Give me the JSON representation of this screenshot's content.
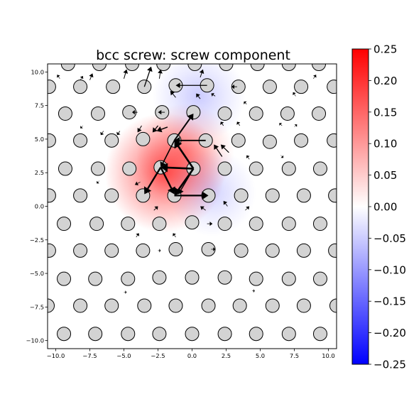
{
  "chart_data": {
    "type": "scatter",
    "title": "bcc screw: screw component",
    "xlabel": "",
    "ylabel": "",
    "xlim": [
      -10.6,
      10.6
    ],
    "ylim": [
      -10.6,
      10.6
    ],
    "xticks": [
      -10.0,
      -7.5,
      -5.0,
      -2.5,
      0.0,
      2.5,
      5.0,
      7.5,
      10.0
    ],
    "yticks": [
      -10.0,
      -7.5,
      -5.0,
      -2.5,
      0.0,
      2.5,
      5.0,
      7.5,
      10.0
    ],
    "xtick_labels": [
      "−10.0",
      "−7.5",
      "−5.0",
      "−2.5",
      "0.0",
      "2.5",
      "5.0",
      "7.5",
      "10.0"
    ],
    "ytick_labels": [
      "−10.0",
      "−7.5",
      "−5.0",
      "−2.5",
      "0.0",
      "2.5",
      "5.0",
      "7.5",
      "10.0"
    ],
    "atom_color": "#d3d3d3",
    "arrow_color": "#000000",
    "colormap": "bwr",
    "colorbar": {
      "range": [
        -0.25,
        0.25
      ],
      "ticks": [
        0.25,
        0.2,
        0.15,
        0.1,
        0.05,
        0.0,
        -0.05,
        -0.1,
        -0.15,
        -0.2,
        -0.25
      ],
      "tick_labels": [
        "0.25",
        "0.20",
        "0.15",
        "0.10",
        "0.05",
        "0.00",
        "−0.05",
        "−0.10",
        "−0.15",
        "−0.20",
        "−0.25"
      ],
      "colors": [
        "#ff0000",
        "#ffffff",
        "#0000ff"
      ]
    },
    "field": [
      {
        "x": -2.0,
        "y": 2.5,
        "value": 0.2,
        "sigma": 2.2
      },
      {
        "x": -0.5,
        "y": 4.0,
        "value": 0.1,
        "sigma": 1.8
      },
      {
        "x": 1.5,
        "y": 1.0,
        "value": -0.05,
        "sigma": 1.6
      },
      {
        "x": 0.5,
        "y": 8.2,
        "value": -0.06,
        "sigma": 1.7
      }
    ],
    "atoms": [
      {
        "x": -9.1,
        "y": 10.6
      },
      {
        "x": -6.8,
        "y": 10.6
      },
      {
        "x": -4.4,
        "y": 10.6
      },
      {
        "x": -2.1,
        "y": 10.6
      },
      {
        "x": 0.2,
        "y": 10.6
      },
      {
        "x": 2.5,
        "y": 10.6
      },
      {
        "x": 4.8,
        "y": 10.6
      },
      {
        "x": 7.1,
        "y": 10.6
      },
      {
        "x": 9.3,
        "y": 10.6
      },
      {
        "x": -10.5,
        "y": 8.9
      },
      {
        "x": -8.2,
        "y": 8.9
      },
      {
        "x": -5.8,
        "y": 8.9
      },
      {
        "x": -3.5,
        "y": 8.9
      },
      {
        "x": -1.2,
        "y": 9.0
      },
      {
        "x": 1.1,
        "y": 9.0
      },
      {
        "x": 3.4,
        "y": 8.9
      },
      {
        "x": 5.7,
        "y": 8.9
      },
      {
        "x": 8.0,
        "y": 8.9
      },
      {
        "x": 10.4,
        "y": 8.9
      },
      {
        "x": -9.3,
        "y": 6.9
      },
      {
        "x": -6.9,
        "y": 6.9
      },
      {
        "x": -4.6,
        "y": 7.0
      },
      {
        "x": -2.2,
        "y": 7.0
      },
      {
        "x": 0.1,
        "y": 7.0
      },
      {
        "x": 2.4,
        "y": 6.9
      },
      {
        "x": 4.7,
        "y": 6.9
      },
      {
        "x": 7.0,
        "y": 6.9
      },
      {
        "x": 9.3,
        "y": 6.9
      },
      {
        "x": -10.5,
        "y": 4.9
      },
      {
        "x": -8.2,
        "y": 4.9
      },
      {
        "x": -5.9,
        "y": 4.9
      },
      {
        "x": -3.6,
        "y": 5.0
      },
      {
        "x": -1.3,
        "y": 4.9
      },
      {
        "x": 1.0,
        "y": 4.9
      },
      {
        "x": 3.4,
        "y": 4.9
      },
      {
        "x": 5.7,
        "y": 4.8
      },
      {
        "x": 8.0,
        "y": 4.9
      },
      {
        "x": 10.4,
        "y": 4.9
      },
      {
        "x": -9.3,
        "y": 2.8
      },
      {
        "x": -6.9,
        "y": 2.8
      },
      {
        "x": -4.6,
        "y": 2.8
      },
      {
        "x": -2.3,
        "y": 2.9
      },
      {
        "x": 0.1,
        "y": 2.8
      },
      {
        "x": 2.4,
        "y": 2.8
      },
      {
        "x": 4.7,
        "y": 2.8
      },
      {
        "x": 7.1,
        "y": 2.8
      },
      {
        "x": 9.4,
        "y": 2.8
      },
      {
        "x": -10.5,
        "y": 0.8
      },
      {
        "x": -8.2,
        "y": 0.8
      },
      {
        "x": -5.9,
        "y": 0.8
      },
      {
        "x": -3.6,
        "y": 0.8
      },
      {
        "x": -1.3,
        "y": 0.8
      },
      {
        "x": 1.2,
        "y": 0.8
      },
      {
        "x": 3.6,
        "y": 0.8
      },
      {
        "x": 5.9,
        "y": 0.8
      },
      {
        "x": 8.2,
        "y": 0.8
      },
      {
        "x": 10.5,
        "y": 0.8
      },
      {
        "x": -9.4,
        "y": -1.3
      },
      {
        "x": -7.0,
        "y": -1.3
      },
      {
        "x": -4.7,
        "y": -1.3
      },
      {
        "x": -2.4,
        "y": -1.3
      },
      {
        "x": 0.0,
        "y": -1.2
      },
      {
        "x": 2.4,
        "y": -1.3
      },
      {
        "x": 4.7,
        "y": -1.3
      },
      {
        "x": 7.1,
        "y": -1.3
      },
      {
        "x": 9.4,
        "y": -1.3
      },
      {
        "x": -10.5,
        "y": -3.3
      },
      {
        "x": -8.2,
        "y": -3.3
      },
      {
        "x": -5.9,
        "y": -3.3
      },
      {
        "x": -3.6,
        "y": -3.3
      },
      {
        "x": -1.2,
        "y": -3.2
      },
      {
        "x": 1.2,
        "y": -3.2
      },
      {
        "x": 3.6,
        "y": -3.3
      },
      {
        "x": 5.9,
        "y": -3.3
      },
      {
        "x": 8.2,
        "y": -3.3
      },
      {
        "x": 10.5,
        "y": -3.3
      },
      {
        "x": -9.4,
        "y": -5.4
      },
      {
        "x": -7.1,
        "y": -5.4
      },
      {
        "x": -4.7,
        "y": -5.4
      },
      {
        "x": -2.4,
        "y": -5.3
      },
      {
        "x": 0.0,
        "y": -5.3
      },
      {
        "x": 2.4,
        "y": -5.3
      },
      {
        "x": 4.7,
        "y": -5.4
      },
      {
        "x": 7.1,
        "y": -5.4
      },
      {
        "x": 9.4,
        "y": -5.4
      },
      {
        "x": -10.6,
        "y": -7.4
      },
      {
        "x": -8.2,
        "y": -7.4
      },
      {
        "x": -5.9,
        "y": -7.4
      },
      {
        "x": -3.5,
        "y": -7.4
      },
      {
        "x": -1.2,
        "y": -7.4
      },
      {
        "x": 1.2,
        "y": -7.4
      },
      {
        "x": 3.5,
        "y": -7.4
      },
      {
        "x": 5.9,
        "y": -7.4
      },
      {
        "x": 8.2,
        "y": -7.4
      },
      {
        "x": 10.6,
        "y": -7.4
      },
      {
        "x": -9.4,
        "y": -9.5
      },
      {
        "x": -7.1,
        "y": -9.5
      },
      {
        "x": -4.7,
        "y": -9.5
      },
      {
        "x": -2.4,
        "y": -9.5
      },
      {
        "x": 0.0,
        "y": -9.5
      },
      {
        "x": 2.4,
        "y": -9.5
      },
      {
        "x": 4.7,
        "y": -9.5
      },
      {
        "x": 7.1,
        "y": -9.5
      },
      {
        "x": 9.4,
        "y": -9.5
      }
    ],
    "arrows": [
      {
        "x1": 0.1,
        "y1": 2.8,
        "x2": -2.3,
        "y2": 2.9,
        "w": 2.6
      },
      {
        "x1": 0.1,
        "y1": 2.8,
        "x2": -1.3,
        "y2": 4.9,
        "w": 2.6
      },
      {
        "x1": 0.1,
        "y1": 2.8,
        "x2": -1.3,
        "y2": 0.8,
        "w": 2.6
      },
      {
        "x1": -2.3,
        "y1": 2.9,
        "x2": -3.5,
        "y2": 0.9,
        "w": 2.4
      },
      {
        "x1": -2.3,
        "y1": 2.9,
        "x2": -1.3,
        "y2": 0.9,
        "w": 2.4
      },
      {
        "x1": -1.3,
        "y1": 0.8,
        "x2": 1.2,
        "y2": 0.8,
        "w": 2.3
      },
      {
        "x1": -1.3,
        "y1": 4.9,
        "x2": 0.1,
        "y2": 6.9,
        "w": 2.0
      },
      {
        "x1": 1.0,
        "y1": 4.9,
        "x2": -1.3,
        "y2": 4.9,
        "w": 1.8
      },
      {
        "x1": -1.3,
        "y1": 4.9,
        "x2": -2.3,
        "y2": 2.9,
        "w": 1.6
      },
      {
        "x1": 0.1,
        "y1": 2.8,
        "x2": -1.0,
        "y2": 0.9,
        "w": 1.5
      },
      {
        "x1": 1.1,
        "y1": 9.0,
        "x2": -1.2,
        "y2": 9.0,
        "w": 1.2
      },
      {
        "x1": -3.5,
        "y1": 8.9,
        "x2": -3.0,
        "y2": 10.4,
        "w": 1.3
      },
      {
        "x1": -1.8,
        "y1": 5.9,
        "x2": -2.6,
        "y2": 5.6,
        "w": 1.5
      },
      {
        "x1": -2.5,
        "y1": 6.0,
        "x2": -2.9,
        "y2": 5.5,
        "w": 1.3
      },
      {
        "x1": 2.2,
        "y1": 3.7,
        "x2": 1.6,
        "y2": 4.6,
        "w": 1.3
      },
      {
        "x1": 2.7,
        "y1": 4.0,
        "x2": 2.1,
        "y2": 4.6,
        "w": 1.2
      },
      {
        "x1": -3.7,
        "y1": 6.0,
        "x2": -4.0,
        "y2": 5.5,
        "w": 1.0
      },
      {
        "x1": -1.2,
        "y1": 8.1,
        "x2": -1.6,
        "y2": 8.6,
        "w": 1.0
      },
      {
        "x1": 0.6,
        "y1": 8.0,
        "x2": 0.3,
        "y2": 8.4,
        "w": 1.0
      },
      {
        "x1": -5.0,
        "y1": 9.5,
        "x2": -4.8,
        "y2": 10.2,
        "w": 1.0
      },
      {
        "x1": -2.4,
        "y1": 9.5,
        "x2": -2.3,
        "y2": 10.2,
        "w": 1.0
      },
      {
        "x1": 0.6,
        "y1": 9.6,
        "x2": 0.8,
        "y2": 10.2,
        "w": 1.0
      },
      {
        "x1": -7.5,
        "y1": 9.4,
        "x2": -7.3,
        "y2": 9.9,
        "w": 0.9
      },
      {
        "x1": -5.3,
        "y1": 5.6,
        "x2": -5.5,
        "y2": 5.3,
        "w": 0.9
      },
      {
        "x1": -2.0,
        "y1": 7.0,
        "x2": -2.5,
        "y2": 7.0,
        "w": 0.9
      },
      {
        "x1": -4.0,
        "y1": 7.0,
        "x2": -4.4,
        "y2": 7.0,
        "w": 0.9
      },
      {
        "x1": 3.3,
        "y1": 8.9,
        "x2": 2.9,
        "y2": 8.9,
        "w": 0.9
      },
      {
        "x1": 2.3,
        "y1": 6.0,
        "x2": 2.1,
        "y2": 6.3,
        "w": 0.9
      },
      {
        "x1": 1.7,
        "y1": 8.2,
        "x2": 1.4,
        "y2": 8.4,
        "w": 0.8
      },
      {
        "x1": 3.5,
        "y1": 6.0,
        "x2": 3.3,
        "y2": 6.3,
        "w": 0.8
      },
      {
        "x1": 4.0,
        "y1": 7.6,
        "x2": 3.8,
        "y2": 7.8,
        "w": 0.8
      },
      {
        "x1": -6.5,
        "y1": 5.6,
        "x2": -6.7,
        "y2": 5.3,
        "w": 0.8
      },
      {
        "x1": 2.6,
        "y1": 0.0,
        "x2": 2.3,
        "y2": 0.4,
        "w": 0.9
      },
      {
        "x1": 1.0,
        "y1": -0.3,
        "x2": 0.6,
        "y2": 0.0,
        "w": 0.9
      },
      {
        "x1": -2.8,
        "y1": -0.3,
        "x2": -2.5,
        "y2": 0.0,
        "w": 0.9
      },
      {
        "x1": 1.1,
        "y1": -1.3,
        "x2": 1.5,
        "y2": -1.3,
        "w": 0.8
      },
      {
        "x1": -3.8,
        "y1": 1.8,
        "x2": -4.2,
        "y2": 1.6,
        "w": 0.8
      },
      {
        "x1": -4.1,
        "y1": -2.3,
        "x2": -3.9,
        "y2": -2.0,
        "w": 0.7
      },
      {
        "x1": -1.2,
        "y1": -2.3,
        "x2": -1.4,
        "y2": -2.0,
        "w": 0.7
      },
      {
        "x1": 4.2,
        "y1": 3.5,
        "x2": 4.0,
        "y2": 3.8,
        "w": 0.7
      },
      {
        "x1": 3.9,
        "y1": -0.3,
        "x2": 4.2,
        "y2": 0.0,
        "w": 0.7
      },
      {
        "x1": 1.4,
        "y1": -3.2,
        "x2": 1.7,
        "y2": -3.2,
        "w": 0.7
      },
      {
        "x1": -2.5,
        "y1": -3.3,
        "x2": -2.3,
        "y2": -3.3,
        "w": 0.6
      },
      {
        "x1": 7.6,
        "y1": 8.2,
        "x2": 7.4,
        "y2": 8.5,
        "w": 0.6
      },
      {
        "x1": 6.6,
        "y1": 6.0,
        "x2": 6.4,
        "y2": 6.2,
        "w": 0.6
      },
      {
        "x1": -8.2,
        "y1": 9.4,
        "x2": -8.0,
        "y2": 9.7,
        "w": 0.6
      },
      {
        "x1": 8.9,
        "y1": 9.5,
        "x2": 9.1,
        "y2": 9.8,
        "w": 0.6
      },
      {
        "x1": -9.7,
        "y1": 9.5,
        "x2": -9.9,
        "y2": 9.8,
        "w": 0.6
      },
      {
        "x1": 7.5,
        "y1": 5.9,
        "x2": 7.7,
        "y2": 6.1,
        "w": 0.5
      },
      {
        "x1": -8.0,
        "y1": 6.0,
        "x2": -8.2,
        "y2": 5.8,
        "w": 0.5
      },
      {
        "x1": -6.8,
        "y1": 1.9,
        "x2": -7.0,
        "y2": 1.7,
        "w": 0.5
      },
      {
        "x1": 6.5,
        "y1": 3.8,
        "x2": 6.7,
        "y2": 3.6,
        "w": 0.5
      },
      {
        "x1": -5.0,
        "y1": -6.4,
        "x2": -4.8,
        "y2": -6.4,
        "w": 0.5
      },
      {
        "x1": 4.4,
        "y1": -6.3,
        "x2": 4.6,
        "y2": -6.3,
        "w": 0.5
      }
    ]
  }
}
